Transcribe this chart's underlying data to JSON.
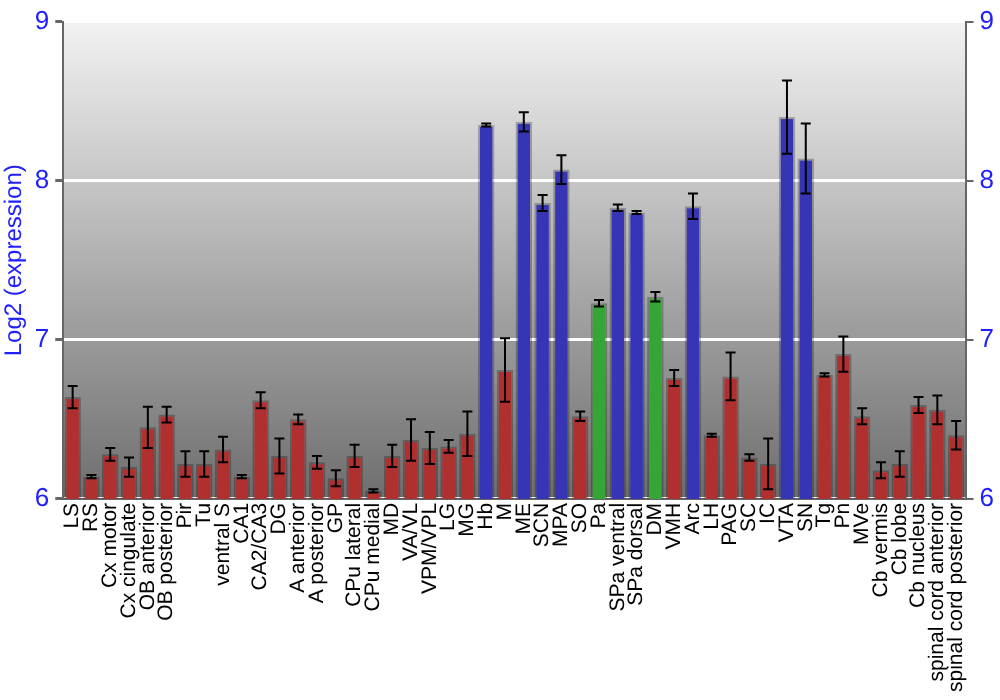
{
  "chart_data": {
    "type": "bar",
    "ylabel": "Log2 (expression)",
    "categories": [
      "LS",
      "RS",
      "Cx motor",
      "Cx cingulate",
      "OB anterior",
      "OB posterior",
      "Pir",
      "Tu",
      "ventral S",
      "CA1",
      "CA2/CA3",
      "DG",
      "A anterior",
      "A posterior",
      "GP",
      "CPu lateral",
      "CPu medial",
      "MD",
      "VA/VL",
      "VPM/VPL",
      "LG",
      "MG",
      "Hb",
      "M",
      "ME",
      "SCN",
      "MPA",
      "SO",
      "Pa",
      "SPa ventral",
      "SPa dorsal",
      "DM",
      "VMH",
      "Arc",
      "LH",
      "PAG",
      "SC",
      "IC",
      "VTA",
      "SN",
      "Tg",
      "Pn",
      "MVe",
      "Cb vermis",
      "Cb lobe",
      "Cb nucleus",
      "spinal cord anterior",
      "spinal cord posterior"
    ],
    "values": [
      6.64,
      6.14,
      6.28,
      6.2,
      6.45,
      6.53,
      6.22,
      6.22,
      6.31,
      6.14,
      6.62,
      6.27,
      6.5,
      6.23,
      6.13,
      6.27,
      6.05,
      6.27,
      6.37,
      6.32,
      6.33,
      6.41,
      8.35,
      6.81,
      8.37,
      7.86,
      8.07,
      6.52,
      7.23,
      7.83,
      7.8,
      7.27,
      6.76,
      7.84,
      6.4,
      6.77,
      6.26,
      6.22,
      8.4,
      8.14,
      6.78,
      6.91,
      6.52,
      6.18,
      6.22,
      6.59,
      6.56,
      6.4
    ],
    "errors": [
      0.07,
      0.01,
      0.04,
      0.06,
      0.13,
      0.05,
      0.08,
      0.08,
      0.08,
      0.01,
      0.05,
      0.11,
      0.03,
      0.04,
      0.05,
      0.07,
      0.01,
      0.07,
      0.13,
      0.1,
      0.04,
      0.14,
      0.01,
      0.2,
      0.06,
      0.05,
      0.09,
      0.03,
      0.02,
      0.02,
      0.01,
      0.03,
      0.05,
      0.08,
      0.01,
      0.15,
      0.02,
      0.16,
      0.23,
      0.22,
      0.01,
      0.11,
      0.05,
      0.05,
      0.08,
      0.05,
      0.09,
      0.09
    ],
    "colors": [
      "#b03030",
      "#b03030",
      "#b03030",
      "#b03030",
      "#b03030",
      "#b03030",
      "#b03030",
      "#b03030",
      "#b03030",
      "#b03030",
      "#b03030",
      "#b03030",
      "#b03030",
      "#b03030",
      "#b03030",
      "#b03030",
      "#b03030",
      "#b03030",
      "#b03030",
      "#b03030",
      "#b03030",
      "#b03030",
      "#3535b5",
      "#b03030",
      "#3535b5",
      "#3535b5",
      "#3535b5",
      "#b03030",
      "#35a535",
      "#3535b5",
      "#3535b5",
      "#35a535",
      "#b03030",
      "#3535b5",
      "#b03030",
      "#b03030",
      "#b03030",
      "#b03030",
      "#3535b5",
      "#3535b5",
      "#b03030",
      "#b03030",
      "#b03030",
      "#b03030",
      "#b03030",
      "#b03030",
      "#b03030",
      "#b03030"
    ],
    "ylim": [
      6,
      9
    ],
    "yticks": [
      6,
      7,
      8,
      9
    ],
    "y2lim": [
      6,
      9
    ],
    "y2ticks": [
      6,
      7,
      8,
      9
    ],
    "grid": "y",
    "legend": false
  }
}
